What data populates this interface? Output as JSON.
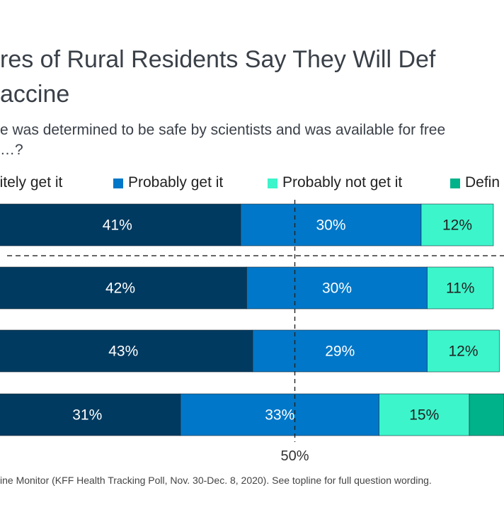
{
  "title_line1": "res of Rural Residents Say They Will Def",
  "title_line2": "accine",
  "subtitle_line1": "e was determined to be safe by scientists and was available for free",
  "subtitle_line2": "…?",
  "source": "ine Monitor (KFF Health Tracking Poll, Nov. 30-Dec. 8, 2020). See topline for full question wording.",
  "colors": {
    "definitely_get": "#003a60",
    "probably_get": "#0077c8",
    "probably_not": "#3cf5cb",
    "definitely_not": "#00b28a"
  },
  "legend": [
    {
      "label": "nitely get it",
      "color": "#003a60"
    },
    {
      "label": "Probably get it",
      "color": "#0077c8"
    },
    {
      "label": "Probably not get it",
      "color": "#3cf5cb"
    },
    {
      "label": "Defin",
      "color": "#00b28a"
    }
  ],
  "chart_data": {
    "type": "bar",
    "orientation": "horizontal-stacked",
    "series": [
      {
        "name": "nitely get it",
        "values": [
          41,
          42,
          43,
          31
        ],
        "labels": [
          "41%",
          "42%",
          "43%",
          "31%"
        ]
      },
      {
        "name": "Probably get it",
        "values": [
          30,
          30,
          29,
          33
        ],
        "labels": [
          "30%",
          "30%",
          "29%",
          "33%"
        ]
      },
      {
        "name": "Probably not get it",
        "values": [
          12,
          11,
          12,
          15
        ],
        "labels": [
          "12%",
          "11%",
          "12%",
          "15%"
        ]
      },
      {
        "name": "Defin",
        "values": [
          null,
          null,
          null,
          null
        ],
        "labels": [
          "",
          "",
          "",
          ""
        ]
      }
    ],
    "reference_line": {
      "value": 50,
      "label": "50%"
    },
    "separator_after_row": 0
  }
}
